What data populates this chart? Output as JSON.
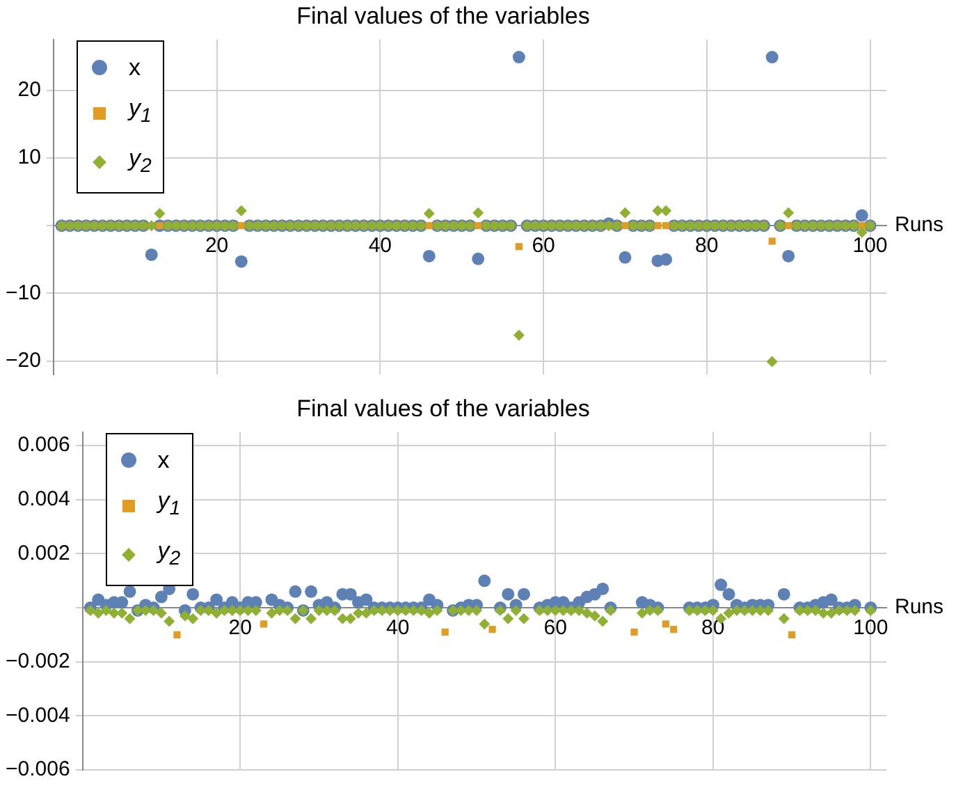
{
  "chart_data": [
    {
      "type": "scatter",
      "title": "Final values of the variables",
      "xlabel": "Runs",
      "x": [
        1,
        2,
        3,
        4,
        5,
        6,
        7,
        8,
        9,
        10,
        11,
        12,
        13,
        14,
        15,
        16,
        17,
        18,
        19,
        20,
        21,
        22,
        23,
        24,
        25,
        26,
        27,
        28,
        29,
        30,
        31,
        32,
        33,
        34,
        35,
        36,
        37,
        38,
        39,
        40,
        41,
        42,
        43,
        44,
        45,
        46,
        47,
        48,
        49,
        50,
        51,
        52,
        53,
        54,
        55,
        56,
        57,
        58,
        59,
        60,
        61,
        62,
        63,
        64,
        65,
        66,
        67,
        68,
        69,
        70,
        71,
        72,
        73,
        74,
        75,
        76,
        77,
        78,
        79,
        80,
        81,
        82,
        83,
        84,
        85,
        86,
        87,
        88,
        89,
        90,
        91,
        92,
        93,
        94,
        95,
        96,
        97,
        98,
        99,
        100
      ],
      "xlim": [
        0,
        102
      ],
      "xticks": [
        20,
        40,
        60,
        80,
        100
      ],
      "ylim": [
        -22,
        27.5
      ],
      "yticks": [
        {
          "value": -20,
          "label": "−20"
        },
        {
          "value": -10,
          "label": "−10"
        },
        {
          "value": 0,
          "label": null
        },
        10,
        20
      ],
      "grid": true,
      "legend": "top left",
      "series": [
        {
          "name": "x",
          "color": "#5e81b5",
          "marker": "circle",
          "values": [
            0,
            0,
            0,
            0,
            0,
            0,
            0,
            0,
            0,
            0,
            0,
            -4.3,
            0,
            0,
            0,
            0,
            0,
            0,
            0,
            0,
            0,
            0,
            -5.3,
            0,
            0,
            0,
            0,
            0,
            0,
            0,
            0,
            0,
            0,
            0,
            0,
            0,
            0,
            0,
            0,
            0,
            0,
            0,
            0,
            0,
            0,
            -4.5,
            0,
            0,
            0,
            0,
            0,
            -4.9,
            0,
            0,
            0,
            0,
            24.9,
            0,
            0,
            0,
            0,
            0,
            0,
            0,
            0,
            0,
            0,
            0.3,
            0,
            -4.7,
            0,
            0,
            0,
            -5.2,
            -5.0,
            0,
            0,
            0,
            0,
            0,
            0,
            0,
            0,
            0,
            0,
            0,
            0,
            24.9,
            0,
            -4.5,
            0,
            0,
            0,
            0,
            0,
            0,
            0,
            0,
            1.5,
            0
          ]
        },
        {
          "name": "y$_{1}$",
          "color": "#e19c24",
          "marker": "square",
          "values": [
            0,
            0,
            0,
            0,
            0,
            0,
            0,
            0,
            0,
            0,
            0,
            0,
            0,
            0,
            0,
            0,
            0,
            0,
            0,
            0,
            0,
            0,
            0,
            0,
            0,
            0,
            0,
            0,
            0,
            0,
            0,
            0,
            0,
            0,
            0,
            0,
            0,
            0,
            0,
            0,
            0,
            0,
            0,
            0,
            0,
            0,
            0,
            0,
            0,
            0,
            0,
            0,
            0,
            0,
            0,
            0,
            -3.1,
            0,
            0,
            0,
            0,
            0,
            0,
            0,
            0,
            0,
            0,
            0,
            0,
            0,
            0,
            0,
            0,
            0,
            0,
            0,
            0,
            0,
            0,
            0,
            0,
            0,
            0,
            0,
            0,
            0,
            0,
            -2.3,
            0,
            0,
            0,
            0,
            0,
            0,
            0,
            0,
            0,
            0,
            0,
            0
          ]
        },
        {
          "name": "y$_{2}$",
          "color": "#8fb032",
          "marker": "diamond",
          "values": [
            0,
            0,
            0,
            0,
            0,
            0,
            0,
            0,
            0,
            0,
            0,
            0,
            1.8,
            0,
            0,
            0,
            0,
            0,
            0,
            0,
            0,
            0,
            2.2,
            0,
            0,
            0,
            0,
            0,
            0,
            0,
            0,
            0,
            0,
            0,
            0,
            0,
            0,
            0,
            0,
            0,
            0,
            0,
            0,
            0,
            0,
            1.8,
            0,
            0,
            0,
            0,
            0,
            1.9,
            0,
            0,
            0,
            0,
            -16.2,
            0,
            0,
            0,
            0,
            0,
            0,
            0,
            0,
            0,
            0,
            0,
            0,
            1.9,
            0,
            0,
            0,
            2.2,
            2.2,
            0,
            0,
            0,
            0,
            0,
            0,
            0,
            0,
            0,
            0,
            0,
            0,
            -20.1,
            0,
            1.9,
            0,
            0,
            0,
            0,
            0,
            0,
            0,
            0,
            -1.0,
            0
          ]
        }
      ]
    },
    {
      "type": "scatter",
      "title": "Final values of the variables",
      "xlabel": "Runs",
      "x": [
        1,
        2,
        3,
        4,
        5,
        6,
        7,
        8,
        9,
        10,
        11,
        12,
        13,
        14,
        15,
        16,
        17,
        18,
        19,
        20,
        21,
        22,
        23,
        24,
        25,
        26,
        27,
        28,
        29,
        30,
        31,
        32,
        33,
        34,
        35,
        36,
        37,
        38,
        39,
        40,
        41,
        42,
        43,
        44,
        45,
        46,
        47,
        48,
        49,
        50,
        51,
        52,
        53,
        54,
        55,
        56,
        57,
        58,
        59,
        60,
        61,
        62,
        63,
        64,
        65,
        66,
        67,
        68,
        69,
        70,
        71,
        72,
        73,
        74,
        75,
        76,
        77,
        78,
        79,
        80,
        81,
        82,
        83,
        84,
        85,
        86,
        87,
        88,
        89,
        90,
        91,
        92,
        93,
        94,
        95,
        96,
        97,
        98,
        99,
        100
      ],
      "xlim": [
        0,
        102
      ],
      "xticks": [
        20,
        40,
        60,
        80,
        100
      ],
      "ylim": [
        -0.006,
        0.0065
      ],
      "yticks": [
        {
          "value": -0.006,
          "label": "−0.006"
        },
        {
          "value": -0.004,
          "label": "−0.004"
        },
        {
          "value": -0.002,
          "label": "−0.002"
        },
        {
          "value": 0,
          "label": null
        },
        0.002,
        0.004,
        0.006
      ],
      "grid": true,
      "legend": "top left",
      "series": [
        {
          "name": "x",
          "color": "#5e81b5",
          "marker": "circle",
          "values": [
            0,
            0.0003,
            0.0001,
            0.0002,
            0.0002,
            0.0006,
            -0.0001,
            0.0001,
            0,
            0.0004,
            0.0007,
            null,
            -0.0001,
            0.0005,
            0,
            0,
            0.0003,
            0,
            0.0002,
            0,
            0.0002,
            0.0002,
            null,
            0.0003,
            0.0001,
            0,
            0.0006,
            -0.0001,
            0.0006,
            0.0001,
            0.0002,
            0,
            0.0005,
            0.0005,
            0.0002,
            0.0003,
            0,
            0,
            0,
            0,
            0,
            0,
            0,
            0.0003,
            0.0001,
            null,
            -0.0001,
            0,
            0.0001,
            0.0001,
            0.001,
            null,
            0,
            0.0005,
            0.0001,
            0.0005,
            null,
            0,
            0.0001,
            0.0002,
            0.0002,
            0,
            0.0002,
            0.0004,
            0.0005,
            0.0007,
            0,
            null,
            null,
            null,
            0.0002,
            0.0001,
            0,
            null,
            null,
            null,
            0,
            0,
            0,
            0.0001,
            0.00085,
            0.0005,
            0.0001,
            0,
            0.0001,
            0.0001,
            0.0001,
            null,
            0.0005,
            null,
            0,
            0,
            0.0001,
            0.0002,
            0.0003,
            0,
            0,
            0.0001,
            null,
            0
          ]
        },
        {
          "name": "y$_{1}$",
          "color": "#e19c24",
          "marker": "square",
          "values": [
            null,
            null,
            null,
            null,
            null,
            null,
            null,
            null,
            null,
            null,
            null,
            -0.001,
            null,
            null,
            null,
            null,
            null,
            null,
            null,
            null,
            null,
            null,
            -0.0006,
            null,
            null,
            null,
            null,
            null,
            null,
            null,
            null,
            null,
            null,
            null,
            null,
            null,
            null,
            null,
            null,
            null,
            null,
            null,
            null,
            null,
            null,
            -0.0009,
            null,
            null,
            null,
            null,
            null,
            -0.0008,
            null,
            null,
            null,
            null,
            null,
            null,
            null,
            null,
            null,
            null,
            null,
            null,
            null,
            null,
            null,
            null,
            null,
            -0.0009,
            null,
            null,
            null,
            -0.0006,
            -0.0008,
            null,
            null,
            null,
            null,
            null,
            null,
            null,
            null,
            null,
            null,
            null,
            null,
            null,
            null,
            -0.001,
            null,
            null,
            null,
            null,
            null,
            null,
            null,
            null,
            null,
            null
          ]
        },
        {
          "name": "y$_{2}$",
          "color": "#8fb032",
          "marker": "diamond",
          "values": [
            -0.0001,
            -0.0002,
            -0.0001,
            -0.0002,
            -0.0002,
            -0.0004,
            -0.0001,
            -0.0001,
            -0.0001,
            -0.0002,
            -0.0005,
            null,
            -0.0003,
            -0.0004,
            -0.0001,
            -0.0001,
            -0.0002,
            -0.0001,
            -0.0001,
            -0.0001,
            -0.0001,
            -0.0001,
            null,
            -0.0002,
            -0.0001,
            -0.0001,
            -0.0004,
            -0.0001,
            -0.0004,
            -0.0001,
            -0.0001,
            -0.0001,
            -0.0004,
            -0.0004,
            -0.0002,
            -0.0002,
            -0.0001,
            -0.0001,
            -0.0001,
            -0.0001,
            -0.0001,
            -0.0001,
            -0.0001,
            -0.0002,
            -0.0001,
            null,
            -0.0001,
            -0.0001,
            -0.0001,
            -0.0001,
            -0.0006,
            null,
            -0.0001,
            -0.0004,
            -0.0001,
            -0.0004,
            null,
            -0.0001,
            -0.0001,
            -0.0001,
            -0.0001,
            -0.0001,
            -0.0001,
            -0.0002,
            -0.0003,
            -0.0005,
            -0.0001,
            null,
            null,
            null,
            -0.0002,
            -0.0001,
            -0.0001,
            null,
            null,
            null,
            -0.0001,
            -0.0001,
            -0.0001,
            -0.0001,
            -0.0004,
            -0.0002,
            -0.0001,
            -0.0001,
            -0.0001,
            -0.0001,
            -0.0001,
            null,
            -0.0004,
            null,
            -0.0001,
            -0.0001,
            -0.0001,
            -0.0002,
            -0.0002,
            -0.0001,
            -0.0001,
            -0.0001,
            null,
            -0.0001
          ]
        }
      ]
    }
  ]
}
